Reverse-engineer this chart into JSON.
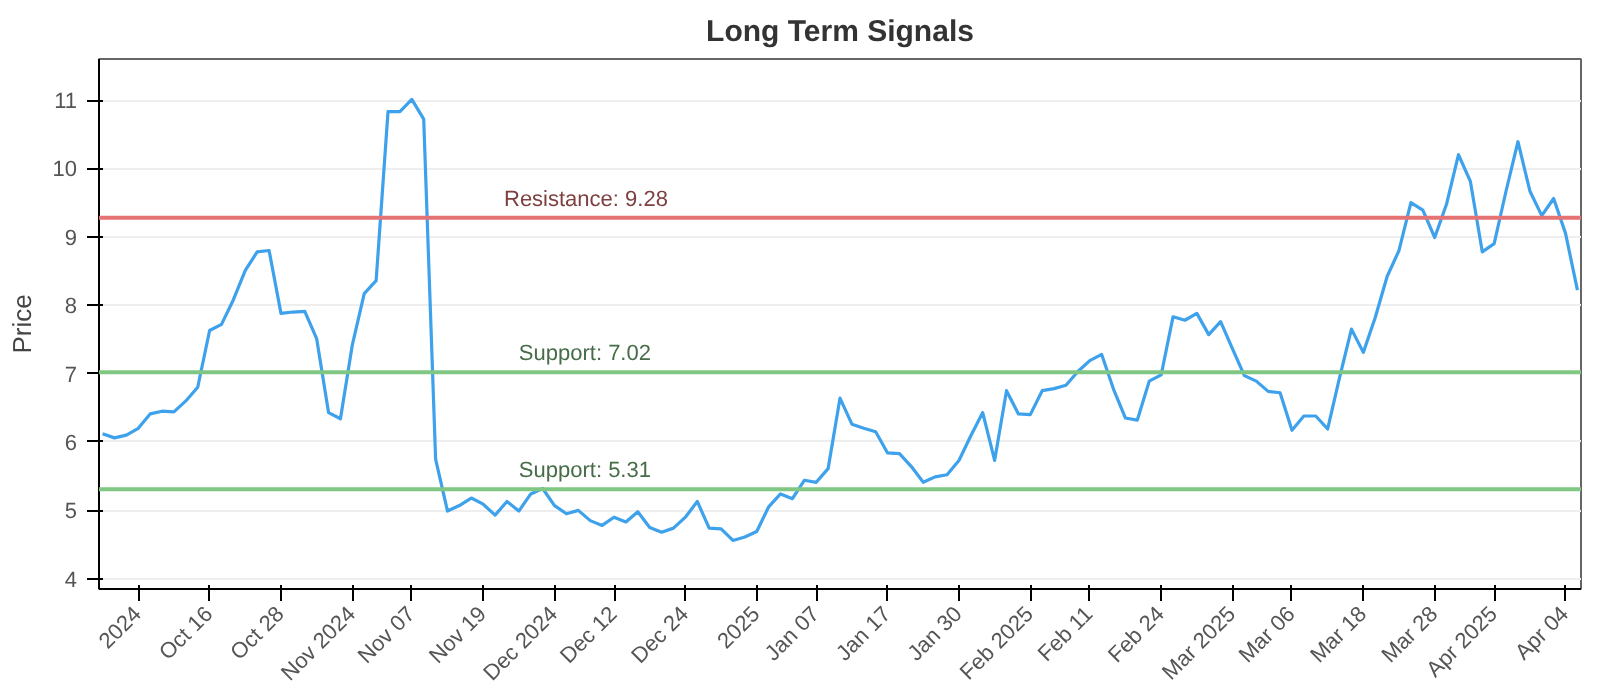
{
  "chart_data": {
    "type": "line",
    "title": "Long Term Signals",
    "ylabel": "Price",
    "categories": [
      null,
      null,
      null,
      "2024",
      null,
      null,
      null,
      null,
      null,
      "Oct 16",
      null,
      null,
      null,
      null,
      null,
      "Oct 28",
      null,
      null,
      null,
      null,
      null,
      "Nov 2024",
      null,
      null,
      null,
      null,
      "Nov 07",
      null,
      null,
      null,
      null,
      null,
      "Nov 19",
      null,
      null,
      null,
      null,
      null,
      "Dec 2024",
      null,
      null,
      null,
      null,
      "Dec 12",
      null,
      null,
      null,
      null,
      null,
      "Dec 24",
      null,
      null,
      null,
      null,
      null,
      "2025",
      null,
      null,
      null,
      null,
      "Jan 07",
      null,
      null,
      null,
      null,
      null,
      "Jan 17",
      null,
      null,
      null,
      null,
      null,
      "Jan 30",
      null,
      null,
      null,
      null,
      null,
      "Feb 2025",
      null,
      null,
      null,
      null,
      "Feb 11",
      null,
      null,
      null,
      null,
      null,
      "Feb 24",
      null,
      null,
      null,
      null,
      null,
      "Mar 2025",
      null,
      null,
      null,
      null,
      "Mar 06",
      null,
      null,
      null,
      null,
      null,
      "Mar 18",
      null,
      null,
      null,
      null,
      null,
      "Mar 28",
      null,
      null,
      null,
      null,
      "Apr 2025",
      null,
      null,
      null,
      null,
      null,
      "Apr 04",
      null
    ],
    "ylim": [
      3.85,
      11.6
    ],
    "yticks": [
      4,
      5,
      6,
      7,
      8,
      9,
      10,
      11
    ],
    "grid": "y",
    "marker": "none",
    "line_style": "solid",
    "series": [
      {
        "color": "#3ea1ec",
        "values": [
          6.12,
          6.06,
          6.1,
          6.2,
          6.41,
          6.45,
          6.44,
          6.6,
          6.8,
          7.63,
          7.72,
          8.08,
          8.51,
          8.78,
          8.8,
          7.88,
          7.9,
          7.91,
          7.51,
          6.43,
          6.34,
          7.42,
          8.17,
          8.36,
          10.83,
          10.83,
          11.01,
          10.72,
          5.75,
          4.99,
          5.07,
          5.18,
          5.09,
          4.93,
          5.13,
          4.99,
          5.24,
          5.32,
          5.07,
          4.95,
          5.0,
          4.85,
          4.78,
          4.9,
          4.83,
          4.98,
          4.75,
          4.68,
          4.74,
          4.9,
          5.13,
          4.74,
          4.73,
          4.56,
          4.61,
          4.69,
          5.05,
          5.24,
          5.17,
          5.44,
          5.41,
          5.61,
          6.64,
          6.26,
          6.2,
          6.15,
          5.84,
          5.83,
          5.64,
          5.41,
          5.49,
          5.52,
          5.73,
          6.09,
          6.43,
          5.73,
          6.75,
          6.41,
          6.4,
          6.75,
          6.78,
          6.83,
          7.03,
          7.19,
          7.28,
          6.77,
          6.35,
          6.32,
          6.89,
          6.98,
          7.83,
          7.78,
          7.88,
          7.57,
          7.76,
          7.36,
          6.97,
          6.89,
          6.74,
          6.72,
          6.17,
          6.38,
          6.38,
          6.19,
          6.94,
          7.65,
          7.31,
          7.82,
          8.42,
          8.8,
          9.5,
          9.39,
          8.99,
          9.48,
          10.2,
          9.81,
          8.78,
          8.9,
          9.67,
          10.39,
          9.67,
          9.31,
          9.56,
          9.05,
          8.22
        ]
      }
    ],
    "ref_lines": [
      {
        "axis": "y",
        "value": 9.28,
        "label": "Resistance: 9.28",
        "color": "#e57373"
      },
      {
        "axis": "y",
        "value": 7.02,
        "label": "Support: 7.02",
        "color": "#81c784"
      },
      {
        "axis": "y",
        "value": 5.31,
        "label": "Support: 5.31",
        "color": "#81c784"
      }
    ]
  }
}
